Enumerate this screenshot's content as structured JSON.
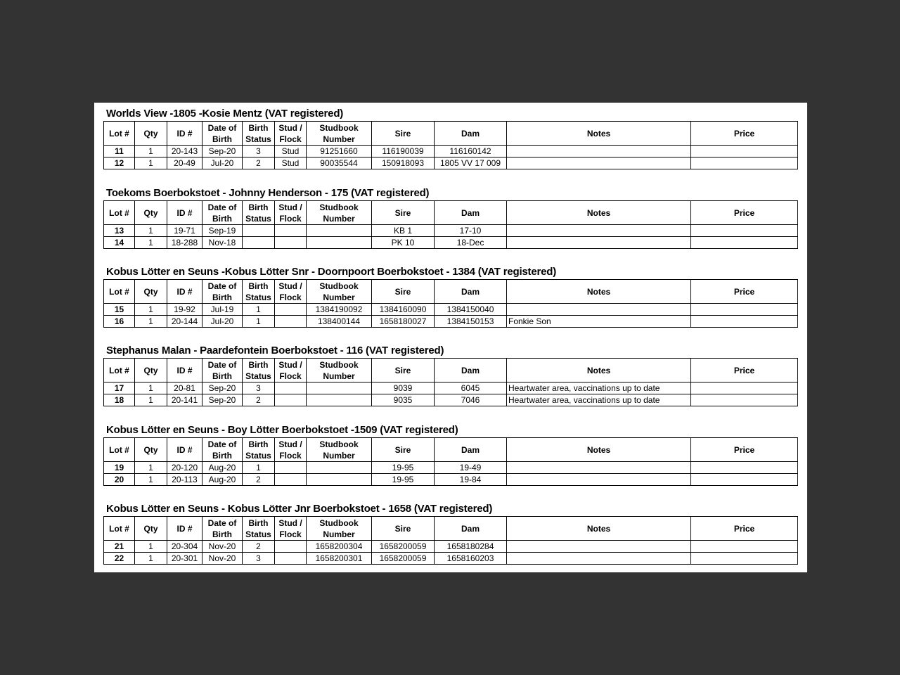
{
  "headers": [
    "Lot #",
    "Qty",
    "ID #",
    "Date of Birth",
    "Birth Status",
    "Stud / Flock",
    "Studbook Number",
    "Sire",
    "Dam",
    "Notes",
    "Price"
  ],
  "sections": [
    {
      "title": "Worlds View -1805 -Kosie Mentz (VAT registered)",
      "rows": [
        [
          "11",
          "1",
          "20-143",
          "Sep-20",
          "3",
          "Stud",
          "91251660",
          "116190039",
          "116160142",
          "",
          ""
        ],
        [
          "12",
          "1",
          "20-49",
          "Jul-20",
          "2",
          "Stud",
          "90035544",
          "150918093",
          "1805 VV 17 009",
          "",
          ""
        ]
      ]
    },
    {
      "title": "Toekoms Boerbokstoet - Johnny Henderson - 175 (VAT registered)",
      "rows": [
        [
          "13",
          "1",
          "19-71",
          "Sep-19",
          "",
          "",
          "",
          "KB 1",
          "17-10",
          "",
          ""
        ],
        [
          "14",
          "1",
          "18-288",
          "Nov-18",
          "",
          "",
          "",
          "PK 10",
          "18-Dec",
          "",
          ""
        ]
      ]
    },
    {
      "title": "Kobus Lötter en Seuns -Kobus Lötter Snr - Doornpoort Boerbokstoet - 1384 (VAT registered)",
      "rows": [
        [
          "15",
          "1",
          "19-92",
          "Jul-19",
          "1",
          "",
          "1384190092",
          "1384160090",
          "1384150040",
          "",
          ""
        ],
        [
          "16",
          "1",
          "20-144",
          "Jul-20",
          "1",
          "",
          "138400144",
          "1658180027",
          "1384150153",
          "Fonkie Son",
          ""
        ]
      ]
    },
    {
      "title": "Stephanus Malan - Paardefontein Boerbokstoet - 116 (VAT registered)",
      "rows": [
        [
          "17",
          "1",
          "20-81",
          "Sep-20",
          "3",
          "",
          "",
          "9039",
          "6045",
          "Heartwater area, vaccinations up to date",
          ""
        ],
        [
          "18",
          "1",
          "20-141",
          "Sep-20",
          "2",
          "",
          "",
          "9035",
          "7046",
          "Heartwater area, vaccinations up to date",
          ""
        ]
      ]
    },
    {
      "title": "Kobus Lötter en Seuns - Boy Lötter Boerbokstoet -1509 (VAT registered)",
      "rows": [
        [
          "19",
          "1",
          "20-120",
          "Aug-20",
          "1",
          "",
          "",
          "19-95",
          "19-49",
          "",
          ""
        ],
        [
          "20",
          "1",
          "20-113",
          "Aug-20",
          "2",
          "",
          "",
          "19-95",
          "19-84",
          "",
          ""
        ]
      ]
    },
    {
      "title": "Kobus Lötter en Seuns - Kobus Lötter Jnr Boerbokstoet - 1658 (VAT registered)",
      "rows": [
        [
          "21",
          "1",
          "20-304",
          "Nov-20",
          "2",
          "",
          "1658200304",
          "1658200059",
          "1658180284",
          "",
          ""
        ],
        [
          "22",
          "1",
          "20-301",
          "Nov-20",
          "3",
          "",
          "1658200301",
          "1658200059",
          "1658160203",
          "",
          ""
        ]
      ]
    }
  ]
}
